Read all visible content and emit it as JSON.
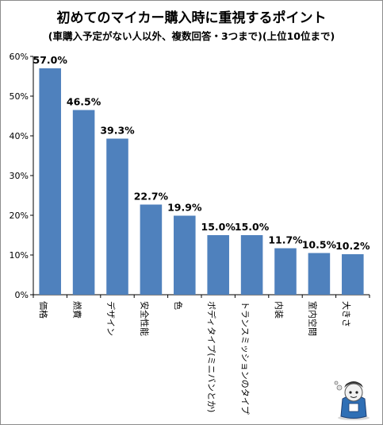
{
  "chart_data": {
    "type": "bar",
    "title": "初めてのマイカー購入時に重視するポイント",
    "subtitle": "(車購入予定がない人以外、複数回答・3つまで)(上位10位まで)",
    "categories": [
      "価格",
      "燃費",
      "デザイン",
      "安全性能",
      "色",
      "ボディタイプ(ミニバンとか)",
      "トランスミッションのタイプ",
      "内装",
      "室内空間",
      "大きさ"
    ],
    "values": [
      57.0,
      46.5,
      39.3,
      22.7,
      19.9,
      15.0,
      15.0,
      11.7,
      10.5,
      10.2
    ],
    "data_labels": [
      "57.0%",
      "46.5%",
      "39.3%",
      "22.7%",
      "19.9%",
      "15.0%",
      "15.0%",
      "11.7%",
      "10.5%",
      "10.2%"
    ],
    "y_ticks": [
      "0%",
      "10%",
      "20%",
      "30%",
      "40%",
      "50%",
      "60%"
    ],
    "ylim": [
      0,
      60
    ],
    "xlabel": "",
    "ylabel": "",
    "grid": false,
    "bar_color": "#4f81bd"
  }
}
